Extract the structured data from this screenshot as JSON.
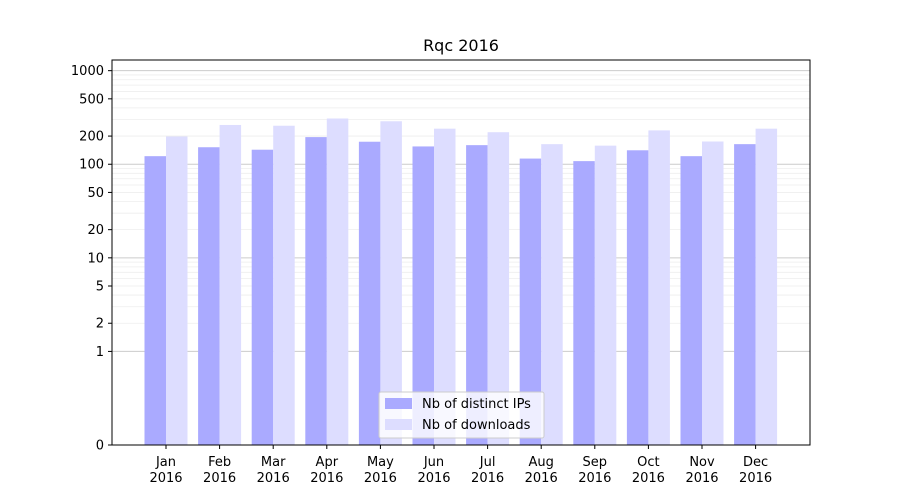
{
  "chart_data": {
    "type": "bar",
    "title": "Rqc 2016",
    "xlabel": "",
    "ylabel": "",
    "yscale": "symlog",
    "ylim": [
      0,
      1300
    ],
    "yticks": [
      0,
      1,
      2,
      5,
      10,
      20,
      50,
      100,
      200,
      500,
      1000
    ],
    "ytick_labels": [
      "0",
      "1",
      "2",
      "5",
      "10",
      "20",
      "50",
      "100",
      "200",
      "500",
      "1000"
    ],
    "categories": [
      [
        "Jan",
        "2016"
      ],
      [
        "Feb",
        "2016"
      ],
      [
        "Mar",
        "2016"
      ],
      [
        "Apr",
        "2016"
      ],
      [
        "May",
        "2016"
      ],
      [
        "Jun",
        "2016"
      ],
      [
        "Jul",
        "2016"
      ],
      [
        "Aug",
        "2016"
      ],
      [
        "Sep",
        "2016"
      ],
      [
        "Oct",
        "2016"
      ],
      [
        "Nov",
        "2016"
      ],
      [
        "Dec",
        "2016"
      ]
    ],
    "series": [
      {
        "name": "Nb of distinct IPs",
        "color": "#aaaaff",
        "values": [
          122,
          152,
          143,
          195,
          174,
          155,
          160,
          115,
          108,
          141,
          122,
          164
        ]
      },
      {
        "name": "Nb of downloads",
        "color": "#ddddff",
        "values": [
          198,
          263,
          258,
          308,
          288,
          240,
          220,
          164,
          158,
          230,
          175,
          240
        ]
      }
    ],
    "grid": true,
    "legend_position": "bottom-center"
  }
}
